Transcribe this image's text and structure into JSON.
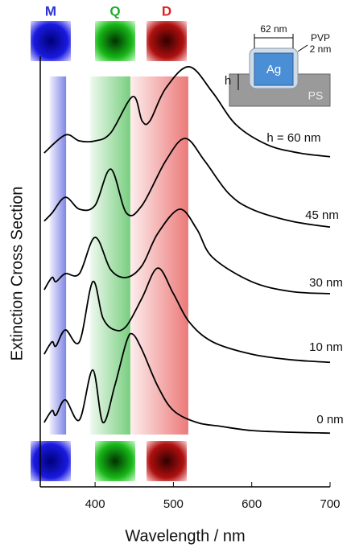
{
  "chart_data": {
    "type": "line",
    "xlabel": "Wavelength / nm",
    "ylabel": "Extinction Cross Section",
    "xlim": [
      330,
      700
    ],
    "ylim": [
      0,
      100
    ],
    "xticks": [
      400,
      500,
      600,
      700
    ],
    "bands": [
      {
        "label": "M",
        "color": "#2b35d6",
        "range": [
          342,
          363
        ]
      },
      {
        "label": "Q",
        "color": "#1fae2a",
        "range": [
          394,
          445
        ]
      },
      {
        "label": "D",
        "color": "#e02020",
        "range": [
          445,
          519
        ]
      }
    ],
    "series": [
      {
        "name": "h = 60 nm",
        "color": "#000000",
        "x": [
          335,
          362,
          380,
          400,
          420,
          448,
          460,
          470,
          490,
          520,
          550,
          580,
          620,
          660,
          700
        ],
        "values": [
          78.3,
          82.5,
          81.1,
          81.1,
          83.0,
          91.5,
          85.8,
          85.8,
          93.4,
          98.5,
          92.5,
          84.9,
          80.2,
          78.3,
          77.4
        ]
      },
      {
        "name": "45 nm",
        "color": "#000000",
        "x": [
          335,
          345,
          362,
          380,
          400,
          420,
          440,
          460,
          490,
          515,
          540,
          570,
          600,
          650,
          700
        ],
        "values": [
          62.3,
          64.2,
          67.9,
          65.1,
          66.0,
          74.5,
          64.2,
          66.0,
          76.4,
          81.7,
          76.4,
          68.9,
          65.1,
          62.3,
          60.9
        ]
      },
      {
        "name": "30 nm",
        "color": "#000000",
        "x": [
          335,
          345,
          350,
          362,
          380,
          400,
          420,
          440,
          460,
          480,
          508,
          530,
          550,
          600,
          650,
          700
        ],
        "values": [
          46.2,
          49.1,
          48.1,
          50.0,
          50.0,
          58.5,
          50.9,
          49.1,
          51.9,
          59.4,
          65.1,
          60.4,
          53.8,
          48.1,
          45.8,
          45.3
        ]
      },
      {
        "name": "10 nm",
        "color": "#000000",
        "x": [
          335,
          345,
          350,
          362,
          380,
          397,
          410,
          425,
          440,
          460,
          480,
          500,
          520,
          550,
          600,
          650,
          700
        ],
        "values": [
          31.1,
          34.0,
          33.0,
          36.8,
          34.0,
          48.1,
          39.6,
          36.8,
          37.7,
          44.3,
          51.3,
          45.3,
          38.7,
          34.0,
          31.1,
          29.8,
          29.2
        ]
      },
      {
        "name": "0 nm",
        "color": "#000000",
        "x": [
          335,
          345,
          350,
          362,
          380,
          397,
          410,
          425,
          440,
          448,
          460,
          480,
          500,
          530,
          560,
          600,
          650,
          700
        ],
        "values": [
          15.1,
          17.9,
          16.8,
          20.4,
          15.7,
          27.4,
          15.1,
          23.6,
          34.0,
          35.8,
          32.1,
          23.6,
          17.9,
          15.1,
          14.2,
          13.2,
          12.8,
          12.6
        ]
      }
    ],
    "inset": {
      "width": "62 nm",
      "shell": "PVP",
      "shell_thickness": "2 nm",
      "particle": "Ag",
      "height": "h",
      "substrate": "PS"
    }
  }
}
